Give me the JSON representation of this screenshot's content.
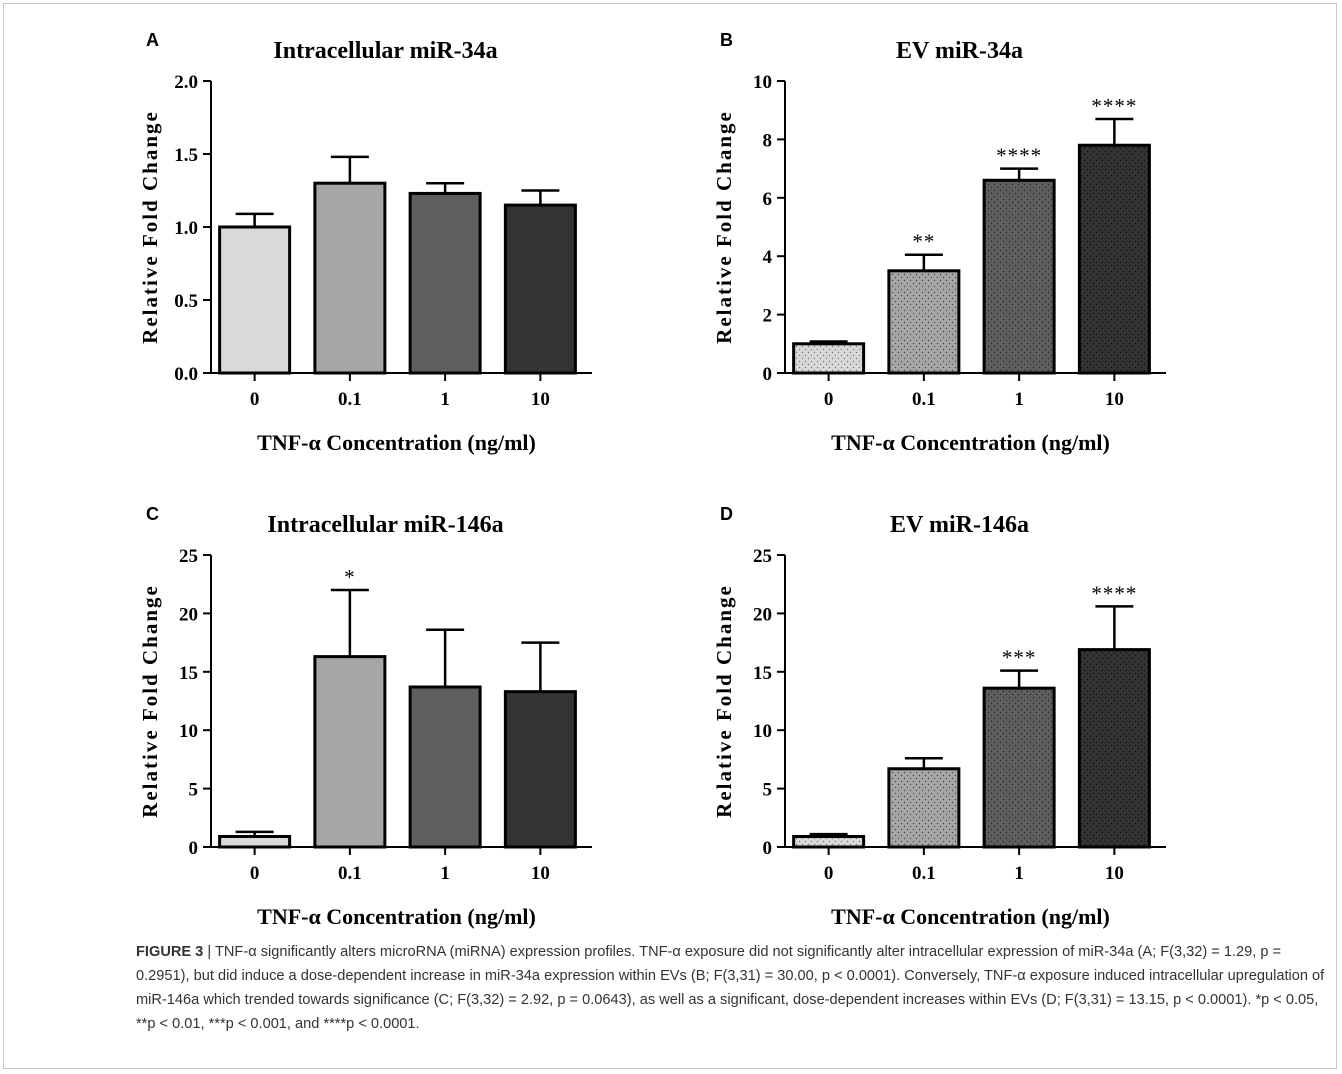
{
  "caption": {
    "label": "FIGURE 3",
    "separator": "|",
    "text": "TNF-α significantly alters microRNA (miRNA) expression profiles. TNF-α exposure did not significantly alter intracellular expression of miR-34a (A; F(3,32) = 1.29, p = 0.2951), but did induce a dose-dependent increase in miR-34a expression within EVs (B; F(3,31) = 30.00, p < 0.0001). Conversely, TNF-α exposure induced intracellular upregulation of miR-146a which trended towards significance (C; F(3,32) = 2.92, p = 0.0643), as well as a significant, dose-dependent increases within EVs (D; F(3,31) = 13.15, p < 0.0001). *p < 0.05, **p < 0.01, ***p < 0.001, and ****p < 0.0001."
  },
  "chart_data": [
    {
      "panel": "A",
      "type": "bar",
      "title": "Intracellular miR-34a",
      "xlabel": "TNF-α Concentration (ng/ml)",
      "ylabel": "Relative Fold Change",
      "categories": [
        "0",
        "0.1",
        "1",
        "10"
      ],
      "values": [
        1.0,
        1.3,
        1.23,
        1.15
      ],
      "errors": [
        0.09,
        0.18,
        0.07,
        0.1
      ],
      "significance": [
        "",
        "",
        "",
        ""
      ],
      "ylim": [
        0,
        2.0
      ],
      "yticks": [
        "0.0",
        "0.5",
        "1.0",
        "1.5",
        "2.0"
      ],
      "colors": [
        "#d9d9d9",
        "#a6a6a6",
        "#5e5e5e",
        "#333333"
      ],
      "patterned": false
    },
    {
      "panel": "B",
      "type": "bar",
      "title": "EV miR-34a",
      "xlabel": "TNF-α Concentration (ng/ml)",
      "ylabel": "Relative Fold Change",
      "categories": [
        "0",
        "0.1",
        "1",
        "10"
      ],
      "values": [
        1.0,
        3.5,
        6.6,
        7.8
      ],
      "errors": [
        0.08,
        0.55,
        0.4,
        0.9
      ],
      "significance": [
        "",
        "**",
        "****",
        "****"
      ],
      "ylim": [
        0,
        10
      ],
      "yticks": [
        "0",
        "2",
        "4",
        "6",
        "8",
        "10"
      ],
      "colors": [
        "#d9d9d9",
        "#a6a6a6",
        "#5e5e5e",
        "#333333"
      ],
      "patterned": true
    },
    {
      "panel": "C",
      "type": "bar",
      "title": "Intracellular miR-146a",
      "xlabel": "TNF-α Concentration (ng/ml)",
      "ylabel": "Relative Fold Change",
      "categories": [
        "0",
        "0.1",
        "1",
        "10"
      ],
      "values": [
        0.9,
        16.3,
        13.7,
        13.3
      ],
      "errors": [
        0.4,
        5.7,
        4.9,
        4.2
      ],
      "significance": [
        "",
        "*",
        "",
        ""
      ],
      "ylim": [
        0,
        25
      ],
      "yticks": [
        "0",
        "5",
        "10",
        "15",
        "20",
        "25"
      ],
      "colors": [
        "#d9d9d9",
        "#a6a6a6",
        "#5e5e5e",
        "#333333"
      ],
      "patterned": false
    },
    {
      "panel": "D",
      "type": "bar",
      "title": "EV miR-146a",
      "xlabel": "TNF-α Concentration (ng/ml)",
      "ylabel": "Relative Fold Change",
      "categories": [
        "0",
        "0.1",
        "1",
        "10"
      ],
      "values": [
        0.9,
        6.7,
        13.6,
        16.9
      ],
      "errors": [
        0.2,
        0.9,
        1.5,
        3.7
      ],
      "significance": [
        "",
        "",
        "***",
        "****"
      ],
      "ylim": [
        0,
        25
      ],
      "yticks": [
        "0",
        "5",
        "10",
        "15",
        "20",
        "25"
      ],
      "colors": [
        "#d9d9d9",
        "#a6a6a6",
        "#5e5e5e",
        "#333333"
      ],
      "patterned": true
    }
  ]
}
